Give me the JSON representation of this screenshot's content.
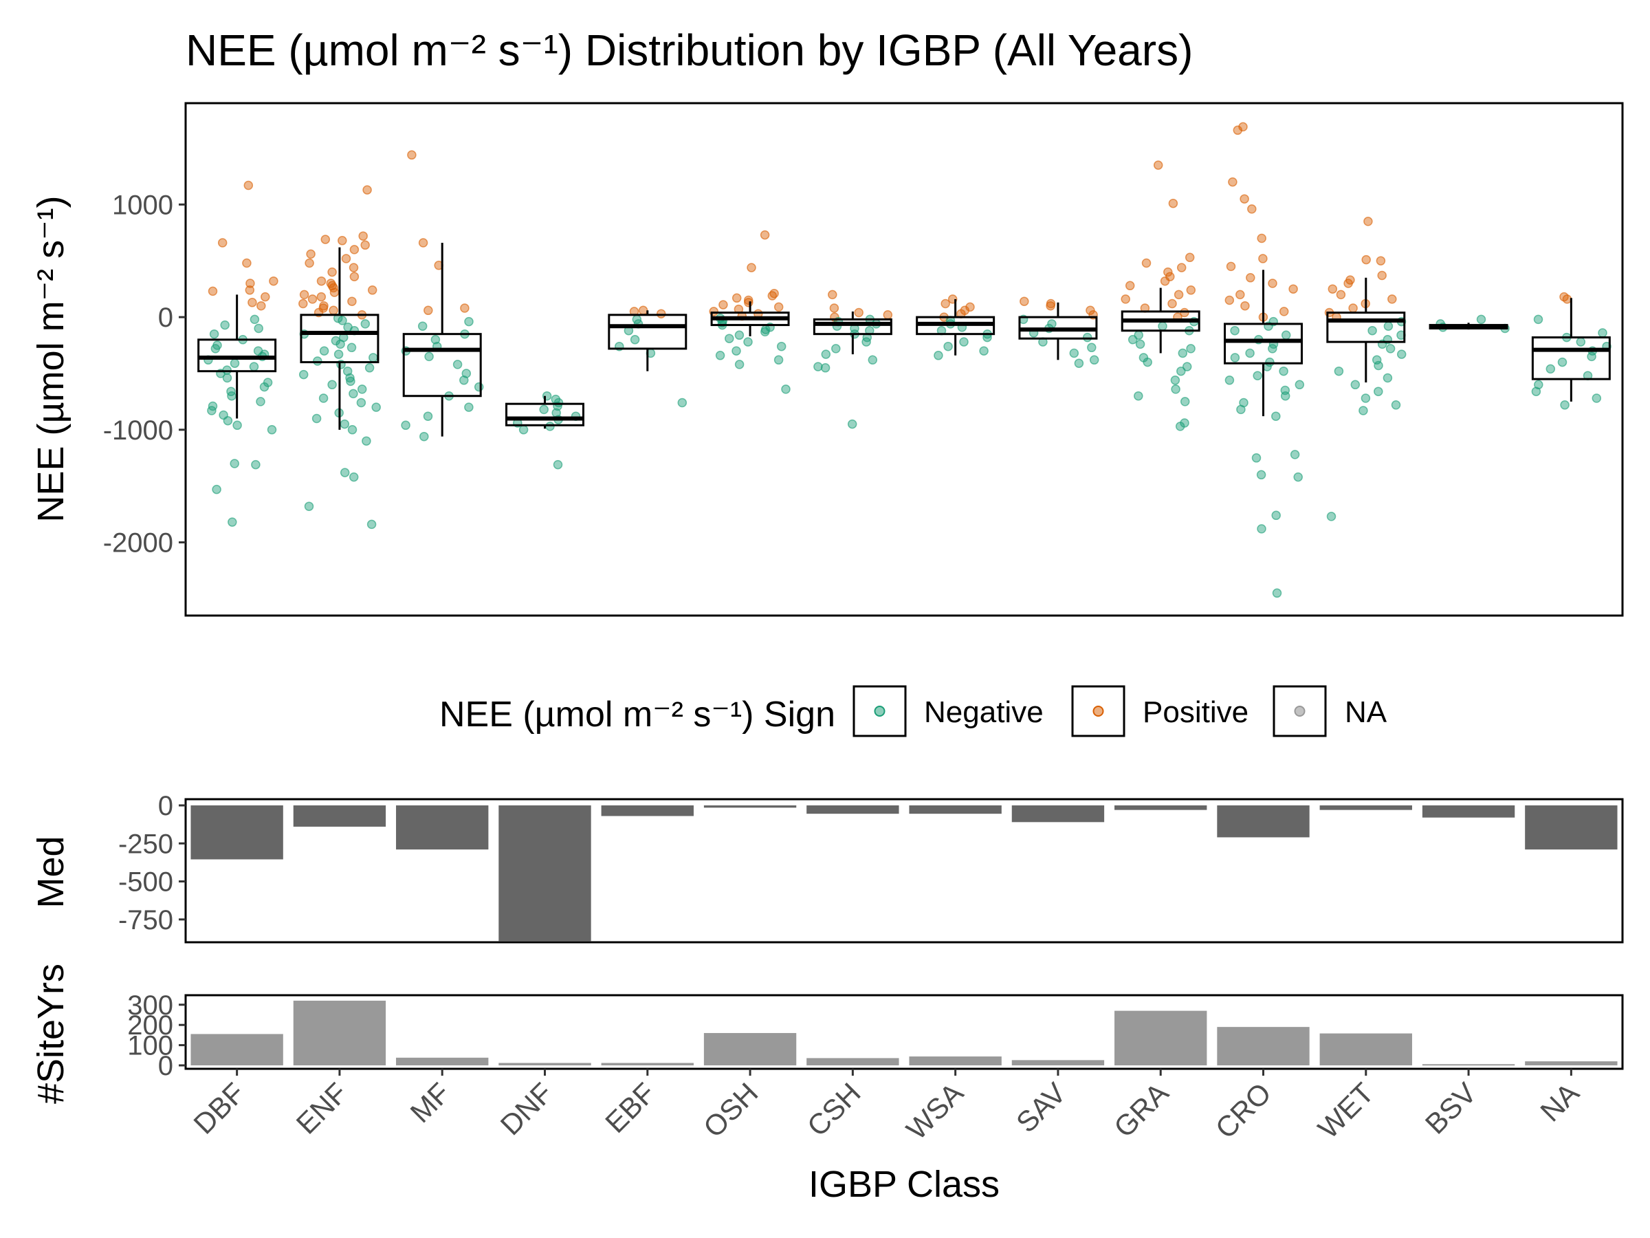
{
  "chart_data": {
    "type": "box",
    "title": "NEE (µmol m⁻² s⁻¹) Distribution by IGBP (All Years)",
    "xlabel": "IGBP Class",
    "categories": [
      "DBF",
      "ENF",
      "MF",
      "DNF",
      "EBF",
      "OSH",
      "CSH",
      "WSA",
      "SAV",
      "GRA",
      "CRO",
      "WET",
      "BSV",
      "NA"
    ],
    "colors": {
      "negative": "#1b9e77",
      "positive": "#d95f02",
      "na": "#999999",
      "med_bar": "#666666",
      "siteyrs_bar": "#999999"
    },
    "boxplot": {
      "ylabel": "NEE (µmol m⁻² s⁻¹)",
      "ylim": [
        -2650,
        1900
      ],
      "yticks": [
        1000,
        0,
        -1000,
        -2000
      ],
      "ytick_labels": [
        "1000",
        "0",
        "-1000",
        "-2000"
      ],
      "boxes": [
        {
          "category": "DBF",
          "q1": -480,
          "median": -360,
          "q3": -200,
          "whisker_low": -900,
          "whisker_high": 200
        },
        {
          "category": "ENF",
          "q1": -400,
          "median": -140,
          "q3": 20,
          "whisker_low": -1000,
          "whisker_high": 620
        },
        {
          "category": "MF",
          "q1": -700,
          "median": -290,
          "q3": -150,
          "whisker_low": -1060,
          "whisker_high": 660
        },
        {
          "category": "DNF",
          "q1": -960,
          "median": -900,
          "q3": -770,
          "whisker_low": -990,
          "whisker_high": -700
        },
        {
          "category": "EBF",
          "q1": -280,
          "median": -80,
          "q3": 20,
          "whisker_low": -480,
          "whisker_high": 60
        },
        {
          "category": "OSH",
          "q1": -70,
          "median": -10,
          "q3": 40,
          "whisker_low": -170,
          "whisker_high": 140
        },
        {
          "category": "CSH",
          "q1": -150,
          "median": -60,
          "q3": -20,
          "whisker_low": -330,
          "whisker_high": 50
        },
        {
          "category": "WSA",
          "q1": -150,
          "median": -60,
          "q3": 0,
          "whisker_low": -340,
          "whisker_high": 160
        },
        {
          "category": "SAV",
          "q1": -190,
          "median": -110,
          "q3": 0,
          "whisker_low": -380,
          "whisker_high": 130
        },
        {
          "category": "GRA",
          "q1": -120,
          "median": -30,
          "q3": 50,
          "whisker_low": -320,
          "whisker_high": 260
        },
        {
          "category": "CRO",
          "q1": -410,
          "median": -210,
          "q3": -60,
          "whisker_low": -880,
          "whisker_high": 420
        },
        {
          "category": "WET",
          "q1": -220,
          "median": -30,
          "q3": 40,
          "whisker_low": -580,
          "whisker_high": 350
        },
        {
          "category": "BSV",
          "q1": -100,
          "median": -90,
          "q3": -70,
          "whisker_low": -110,
          "whisker_high": -50
        },
        {
          "category": "NA",
          "q1": -550,
          "median": -290,
          "q3": -180,
          "whisker_low": -750,
          "whisker_high": 170
        }
      ],
      "points": [
        {
          "category": "DBF",
          "values": [
            1170,
            660,
            480,
            320,
            300,
            240,
            230,
            180,
            130,
            100,
            -20,
            -70,
            -100,
            -150,
            -200,
            -250,
            -280,
            -300,
            -330,
            -350,
            -380,
            -410,
            -440,
            -470,
            -500,
            -540,
            -580,
            -620,
            -660,
            -700,
            -750,
            -790,
            -830,
            -870,
            -920,
            -960,
            -1000,
            -1300,
            -1310,
            -1530,
            -1820
          ]
        },
        {
          "category": "ENF",
          "values": [
            1130,
            720,
            690,
            680,
            640,
            600,
            560,
            520,
            480,
            440,
            400,
            360,
            320,
            300,
            280,
            260,
            240,
            220,
            200,
            180,
            160,
            140,
            120,
            100,
            80,
            60,
            40,
            20,
            -10,
            -30,
            -60,
            -90,
            -120,
            -150,
            -180,
            -210,
            -240,
            -270,
            -300,
            -330,
            -360,
            -390,
            -420,
            -450,
            -480,
            -510,
            -540,
            -570,
            -600,
            -640,
            -680,
            -720,
            -760,
            -800,
            -850,
            -900,
            -950,
            -1000,
            -1100,
            -1380,
            -1420,
            -1680,
            -1840
          ]
        },
        {
          "category": "MF",
          "values": [
            1440,
            660,
            460,
            80,
            60,
            -40,
            -80,
            -150,
            -200,
            -260,
            -300,
            -350,
            -420,
            -500,
            -560,
            -620,
            -700,
            -800,
            -880,
            -960,
            -1060
          ]
        },
        {
          "category": "DNF",
          "values": [
            -700,
            -730,
            -760,
            -790,
            -820,
            -850,
            -880,
            -910,
            -940,
            -970,
            -1000,
            -1310
          ]
        },
        {
          "category": "EBF",
          "values": [
            60,
            50,
            30,
            -20,
            -60,
            -120,
            -200,
            -260,
            -320,
            -760
          ]
        },
        {
          "category": "OSH",
          "values": [
            730,
            440,
            210,
            190,
            170,
            150,
            130,
            110,
            90,
            70,
            50,
            30,
            10,
            -10,
            -30,
            -50,
            -70,
            -90,
            -110,
            -130,
            -160,
            -190,
            -220,
            -260,
            -300,
            -340,
            -380,
            -420,
            -640
          ]
        },
        {
          "category": "CSH",
          "values": [
            200,
            80,
            40,
            20,
            0,
            -20,
            -40,
            -60,
            -80,
            -100,
            -120,
            -150,
            -180,
            -220,
            -280,
            -330,
            -380,
            -440,
            -450,
            -950
          ]
        },
        {
          "category": "WSA",
          "values": [
            160,
            120,
            90,
            60,
            30,
            0,
            -30,
            -60,
            -90,
            -120,
            -150,
            -180,
            -220,
            -260,
            -300,
            -340
          ]
        },
        {
          "category": "SAV",
          "values": [
            140,
            120,
            100,
            60,
            20,
            -20,
            -60,
            -100,
            -140,
            -180,
            -220,
            -270,
            -320,
            -380,
            -410
          ]
        },
        {
          "category": "GRA",
          "values": [
            1350,
            1010,
            530,
            480,
            440,
            400,
            360,
            320,
            280,
            240,
            200,
            160,
            120,
            80,
            40,
            0,
            -40,
            -80,
            -120,
            -160,
            -200,
            -240,
            -280,
            -320,
            -360,
            -400,
            -440,
            -480,
            -560,
            -640,
            -700,
            -750,
            -940,
            -970
          ]
        },
        {
          "category": "CRO",
          "values": [
            1690,
            1660,
            1200,
            1050,
            960,
            700,
            520,
            450,
            350,
            300,
            250,
            200,
            150,
            100,
            50,
            0,
            -40,
            -80,
            -120,
            -160,
            -200,
            -240,
            -280,
            -320,
            -360,
            -400,
            -440,
            -480,
            -520,
            -560,
            -600,
            -650,
            -700,
            -760,
            -820,
            -880,
            -1220,
            -1250,
            -1400,
            -1420,
            -1760,
            -1880,
            -2450
          ]
        },
        {
          "category": "WET",
          "values": [
            850,
            510,
            500,
            370,
            330,
            300,
            250,
            200,
            160,
            120,
            80,
            40,
            0,
            -40,
            -80,
            -120,
            -160,
            -200,
            -240,
            -280,
            -330,
            -380,
            -430,
            -480,
            -540,
            -600,
            -660,
            -720,
            -780,
            -830,
            -1770
          ]
        },
        {
          "category": "BSV",
          "values": [
            -20,
            -60,
            -90,
            -100
          ]
        },
        {
          "category": "NA",
          "values": [
            180,
            160,
            -20,
            -140,
            -180,
            -220,
            -260,
            -300,
            -350,
            -400,
            -460,
            -520,
            -600,
            -660,
            -720,
            -780
          ]
        }
      ]
    },
    "legend": {
      "title": "NEE (µmol m⁻² s⁻¹) Sign",
      "placement": "between panels, centered",
      "entries": [
        "Negative",
        "Positive",
        "NA"
      ]
    },
    "median_panel": {
      "type": "bar",
      "ylabel": "Med",
      "ylim": [
        -900,
        0
      ],
      "yticks": [
        0,
        -250,
        -500,
        -750
      ],
      "ytick_labels": [
        "0",
        "-250",
        "-500",
        "-750"
      ],
      "values": [
        -355,
        -140,
        -290,
        -895,
        -70,
        -15,
        -55,
        -55,
        -110,
        -30,
        -210,
        -30,
        -80,
        -290
      ]
    },
    "siteyrs_panel": {
      "type": "bar",
      "ylabel": "#SiteYrs",
      "ylim": [
        0,
        330
      ],
      "yticks": [
        0,
        100,
        200,
        300
      ],
      "ytick_labels": [
        "0",
        "100",
        "200",
        "300"
      ],
      "values": [
        155,
        320,
        38,
        12,
        12,
        160,
        36,
        44,
        26,
        270,
        190,
        158,
        6,
        20
      ]
    }
  }
}
